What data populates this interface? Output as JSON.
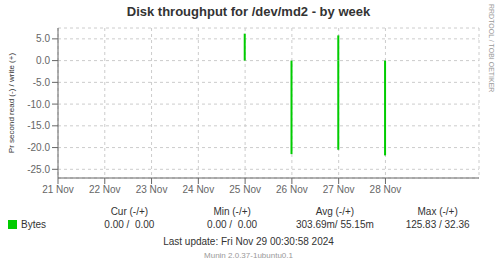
{
  "chart_data": {
    "type": "bar",
    "title": "Disk throughput for /dev/md2 - by week",
    "y_label": "Pr second read (-) / write (+)",
    "x": [
      1732406400,
      1732406400,
      1732492800,
      1732492800,
      1732579200,
      1732579200,
      1732665600,
      1732665600
    ],
    "series": [
      {
        "name": "Bytes",
        "color": "#00cc00",
        "values": [
          6.2,
          0.0,
          0.0,
          -21.5,
          5.8,
          -20.5,
          0.0,
          -21.8
        ]
      }
    ],
    "xlim": [
      1732060800,
      1732838400
    ],
    "xticks": [
      {
        "value": 1732060800,
        "label": "21 Nov"
      },
      {
        "value": 1732147200,
        "label": "22 Nov"
      },
      {
        "value": 1732233600,
        "label": "23 Nov"
      },
      {
        "value": 1732320000,
        "label": "24 Nov"
      },
      {
        "value": 1732406400,
        "label": "25 Nov"
      },
      {
        "value": 1732492800,
        "label": "26 Nov"
      },
      {
        "value": 1732579200,
        "label": "27 Nov"
      },
      {
        "value": 1732665600,
        "label": "28 Nov"
      }
    ],
    "ylim": [
      -27,
      7.5
    ],
    "yticks": [
      {
        "value": 5.0,
        "label": "5.0"
      },
      {
        "value": 0.0,
        "label": "0.0"
      },
      {
        "value": -5.0,
        "label": "-5.0"
      },
      {
        "value": -10.0,
        "label": "-10.0"
      },
      {
        "value": -15.0,
        "label": "-15.0"
      },
      {
        "value": -20.0,
        "label": "-20.0"
      },
      {
        "value": -25.0,
        "label": "-25.0"
      }
    ],
    "grid": true,
    "legend": "bottom",
    "stats": {
      "columns": [
        "Cur (-/+)",
        "Min (-/+)",
        "Avg (-/+)",
        "Max (-/+)"
      ],
      "values": [
        "0.00 /  0.00",
        "0.00 /  0.00",
        "303.69m/ 55.15m",
        "125.83 / 32.36"
      ]
    },
    "annotations": [
      "RRDTOOL / TOBI OETIKER",
      "Last update: Fri Nov 29 00:30:58 2024",
      "Munin 2.0.37-1ubuntu0.1"
    ]
  }
}
